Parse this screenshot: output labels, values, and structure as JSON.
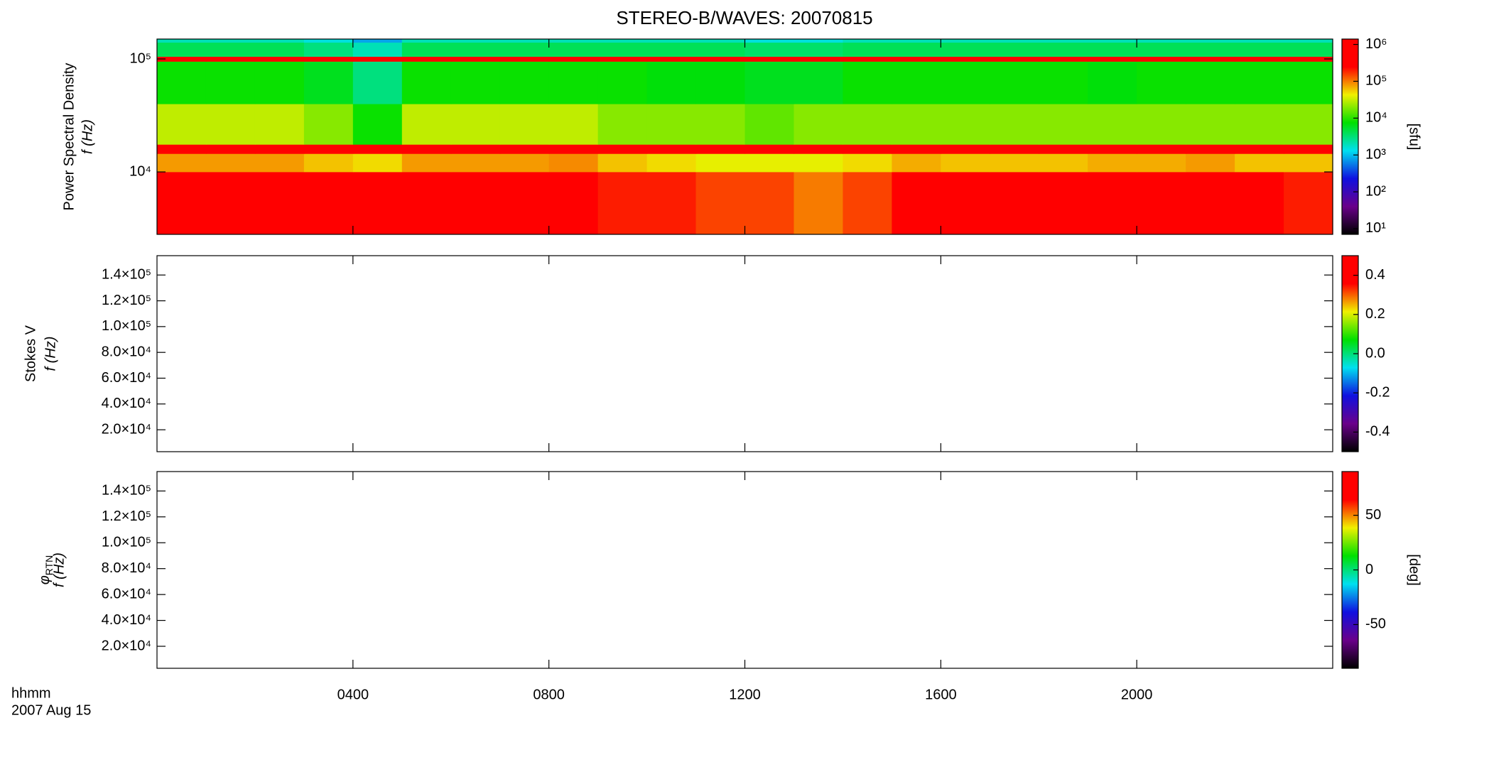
{
  "chart_data": [
    {
      "type": "heatmap",
      "title": "STEREO-B/WAVES: 20070815",
      "ylabel": "Power Spectral Density",
      "ylabel2": "f (Hz)",
      "clabel": "[sfu]",
      "xlim": [
        0,
        24
      ],
      "ylim": [
        2800,
        150000
      ],
      "ylog": true,
      "yticks": [
        {
          "value": 10000,
          "label": "10⁴"
        },
        {
          "value": 100000,
          "label": "10⁵"
        }
      ],
      "clim": [
        7,
        1400000
      ],
      "clog": true,
      "cticks": [
        {
          "value": 10,
          "label": "10¹"
        },
        {
          "value": 100,
          "label": "10²"
        },
        {
          "value": 1000,
          "label": "10³"
        },
        {
          "value": 10000,
          "label": "10⁴"
        },
        {
          "value": 100000,
          "label": "10⁵"
        },
        {
          "value": 1000000,
          "label": "10⁶"
        }
      ],
      "colormap": [
        "#000000",
        "#6a008a",
        "#1010e0",
        "#00e0f0",
        "#00e000",
        "#f0f000",
        "#ff0000",
        "#ff0000"
      ],
      "x_edges": [
        0,
        1,
        2,
        3,
        4,
        5,
        6,
        7,
        8,
        9,
        10,
        11,
        12,
        13,
        14,
        15,
        16,
        17,
        18,
        19,
        20,
        21,
        22,
        23,
        24
      ],
      "y_edges": [
        2800,
        10000,
        14500,
        17500,
        40000,
        95000,
        105000,
        140000,
        150000
      ],
      "z": [
        [
          1000000,
          1000000,
          1000000,
          300000,
          300000,
          1000000,
          1000000,
          1000000,
          500000,
          200000,
          200000,
          150000,
          150000,
          100000,
          150000,
          800000,
          500000,
          500000,
          400000,
          600000,
          800000,
          1000000,
          300000,
          200000
        ],
        [
          80000,
          80000,
          80000,
          60000,
          50000,
          80000,
          80000,
          80000,
          90000,
          60000,
          50000,
          40000,
          40000,
          40000,
          50000,
          70000,
          60000,
          60000,
          60000,
          70000,
          70000,
          80000,
          60000,
          60000
        ],
        [
          1000000,
          1000000,
          1000000,
          1000000,
          1000000,
          1000000,
          1000000,
          1000000,
          1000000,
          1000000,
          1000000,
          1000000,
          1000000,
          1000000,
          1000000,
          1000000,
          1000000,
          1000000,
          1000000,
          1000000,
          1000000,
          1000000,
          1000000,
          1000000
        ],
        [
          30000,
          30000,
          30000,
          20000,
          8000,
          30000,
          30000,
          30000,
          30000,
          20000,
          20000,
          20000,
          15000,
          20000,
          20000,
          20000,
          20000,
          20000,
          20000,
          20000,
          20000,
          20000,
          20000,
          20000
        ],
        [
          8000,
          8000,
          8000,
          6000,
          3000,
          8000,
          8000,
          8000,
          8000,
          8000,
          7000,
          7000,
          6000,
          6000,
          8000,
          8000,
          8000,
          8000,
          8000,
          7000,
          8000,
          8000,
          8000,
          8000
        ],
        [
          1000000,
          1000000,
          1000000,
          1000000,
          1000000,
          1000000,
          1000000,
          1000000,
          1000000,
          1000000,
          1000000,
          1000000,
          1000000,
          1000000,
          1000000,
          1000000,
          1000000,
          1000000,
          1000000,
          1000000,
          1000000,
          1000000,
          1000000,
          1000000
        ],
        [
          4000,
          4000,
          4000,
          3000,
          2000,
          4000,
          4000,
          4000,
          4000,
          4000,
          4000,
          4000,
          3500,
          3500,
          4000,
          4000,
          4000,
          4000,
          4000,
          4000,
          4000,
          4000,
          4000,
          4000
        ],
        [
          2000,
          2000,
          2000,
          1500,
          800,
          2000,
          2000,
          2000,
          2000,
          2000,
          2000,
          2000,
          1500,
          1500,
          2000,
          2000,
          2000,
          2000,
          2000,
          2000,
          2000,
          2000,
          2000,
          2000
        ]
      ]
    },
    {
      "type": "heatmap",
      "ylabel": "Stokes V",
      "ylabel2": "f (Hz)",
      "xlim": [
        0,
        24
      ],
      "ylim": [
        3000,
        155000
      ],
      "yticks": [
        {
          "value": 20000,
          "label": "2.0×10⁴"
        },
        {
          "value": 40000,
          "label": "4.0×10⁴"
        },
        {
          "value": 60000,
          "label": "6.0×10⁴"
        },
        {
          "value": 80000,
          "label": "8.0×10⁴"
        },
        {
          "value": 100000,
          "label": "1.0×10⁵"
        },
        {
          "value": 120000,
          "label": "1.2×10⁵"
        },
        {
          "value": 140000,
          "label": "1.4×10⁵"
        }
      ],
      "clim": [
        -0.5,
        0.5
      ],
      "cticks": [
        {
          "value": -0.4,
          "label": "-0.4"
        },
        {
          "value": -0.2,
          "label": "-0.2"
        },
        {
          "value": 0,
          "label": "0.0"
        },
        {
          "value": 0.2,
          "label": "0.2"
        },
        {
          "value": 0.4,
          "label": "0.4"
        }
      ],
      "colormap": [
        "#000000",
        "#6a008a",
        "#1010e0",
        "#00e0f0",
        "#00e000",
        "#f0f000",
        "#ff0000",
        "#ff0000"
      ]
    },
    {
      "type": "heatmap",
      "ylabel": "φ",
      "ylabel_sub": "RTN",
      "ylabel2": "f (Hz)",
      "clabel": "[deg]",
      "xlim": [
        0,
        24
      ],
      "ylim": [
        3000,
        155000
      ],
      "yticks": [
        {
          "value": 20000,
          "label": "2.0×10⁴"
        },
        {
          "value": 40000,
          "label": "4.0×10⁴"
        },
        {
          "value": 60000,
          "label": "6.0×10⁴"
        },
        {
          "value": 80000,
          "label": "8.0×10⁴"
        },
        {
          "value": 100000,
          "label": "1.0×10⁵"
        },
        {
          "value": 120000,
          "label": "1.2×10⁵"
        },
        {
          "value": 140000,
          "label": "1.4×10⁵"
        }
      ],
      "clim": [
        -90,
        90
      ],
      "cticks": [
        -50,
        0,
        50
      ],
      "colormap": [
        "#000000",
        "#6a008a",
        "#1010e0",
        "#00e0f0",
        "#00e000",
        "#f0f000",
        "#ff0000",
        "#ff0000"
      ],
      "xticks": [
        {
          "value": 4,
          "label": "0400"
        },
        {
          "value": 8,
          "label": "0800"
        },
        {
          "value": 12,
          "label": "1200"
        },
        {
          "value": 16,
          "label": "1600"
        },
        {
          "value": 20,
          "label": "2000"
        }
      ],
      "xlabel": "hhmm",
      "xlabel2": "2007 Aug 15"
    }
  ]
}
